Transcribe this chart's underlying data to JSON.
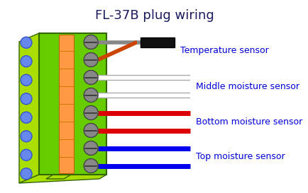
{
  "title": "FL-37B plug wiring",
  "title_color": "#1a1a5e",
  "title_fontsize": 13,
  "background_color": "#ffffff",
  "connector": {
    "green_body": "#66cc00",
    "green_side": "#aadd00",
    "orange_strip": "#ff9944",
    "screw_fill": "#888888",
    "screw_edge": "#444444",
    "bump_fill": "#6688ee",
    "bump_edge": "#3355cc",
    "dark_green_edge": "#336600"
  },
  "wire_groups": [
    {
      "label": "Temperature sensor",
      "label_color": "#0000dd",
      "terminal_indices": [
        0,
        1
      ],
      "wire_colors": [
        "#888888",
        "#cc4400"
      ],
      "type": "temp"
    },
    {
      "label": "Middle moisture sensor",
      "label_color": "#0000dd",
      "terminal_indices": [
        2,
        3
      ],
      "wire_colors": [
        "#ffffff",
        "#ffffff"
      ],
      "type": "moisture"
    },
    {
      "label": "Bottom moisture sensor",
      "label_color": "#0000dd",
      "terminal_indices": [
        4,
        5
      ],
      "wire_colors": [
        "#dd0000",
        "#dd0000"
      ],
      "type": "moisture"
    },
    {
      "label": "Top moisture sensor",
      "label_color": "#0000dd",
      "terminal_indices": [
        6,
        7
      ],
      "wire_colors": [
        "#0000ee",
        "#0000ee"
      ],
      "type": "moisture"
    }
  ],
  "num_terminals": 8,
  "figsize": [
    4.35,
    2.73
  ],
  "dpi": 100
}
